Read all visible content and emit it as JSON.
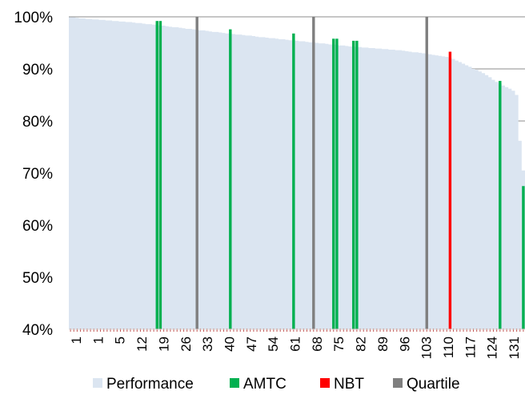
{
  "chart_data": {
    "type": "bar",
    "title": "",
    "xlabel": "",
    "ylabel": "",
    "ylim": [
      0.4,
      1.0
    ],
    "y_ticks": [
      {
        "value": 1.0,
        "label": "100%"
      },
      {
        "value": 0.9,
        "label": "90%"
      },
      {
        "value": 0.8,
        "label": "80%"
      },
      {
        "value": 0.7,
        "label": "70%"
      },
      {
        "value": 0.6,
        "label": "60%"
      },
      {
        "value": 0.5,
        "label": "50%"
      },
      {
        "value": 0.4,
        "label": "40%"
      }
    ],
    "x_tick_labels": [
      "1",
      "1",
      "5",
      "12",
      "19",
      "26",
      "33",
      "40",
      "47",
      "54",
      "61",
      "68",
      "75",
      "82",
      "89",
      "96",
      "103",
      "110",
      "117",
      "124",
      "131"
    ],
    "category_count": 137,
    "grid": "horizontal",
    "legend_position": "bottom",
    "colors": {
      "Performance": "#dbe5f1",
      "AMTC": "#00b050",
      "NBT": "#ff0000",
      "Quartile": "#7f7f7f",
      "baseline_tick": "#c0504d"
    },
    "series": [
      {
        "name": "Performance",
        "color": "#dbe5f1",
        "kind": "area",
        "values": [
          0.999,
          0.999,
          0.998,
          0.997,
          0.997,
          0.996,
          0.996,
          0.995,
          0.995,
          0.994,
          0.994,
          0.993,
          0.993,
          0.992,
          0.992,
          0.991,
          0.991,
          0.99,
          0.99,
          0.989,
          0.988,
          0.988,
          0.987,
          0.986,
          0.986,
          0.985,
          0.984,
          0.983,
          0.983,
          0.982,
          0.981,
          0.98,
          0.98,
          0.979,
          0.978,
          0.977,
          0.977,
          0.976,
          0.975,
          0.974,
          0.974,
          0.973,
          0.972,
          0.971,
          0.971,
          0.97,
          0.969,
          0.968,
          0.968,
          0.967,
          0.966,
          0.966,
          0.965,
          0.964,
          0.964,
          0.963,
          0.962,
          0.961,
          0.961,
          0.96,
          0.959,
          0.959,
          0.958,
          0.957,
          0.957,
          0.956,
          0.955,
          0.955,
          0.954,
          0.953,
          0.953,
          0.952,
          0.951,
          0.951,
          0.95,
          0.949,
          0.949,
          0.948,
          0.947,
          0.947,
          0.946,
          0.945,
          0.945,
          0.944,
          0.943,
          0.943,
          0.942,
          0.942,
          0.941,
          0.941,
          0.94,
          0.94,
          0.939,
          0.939,
          0.938,
          0.938,
          0.937,
          0.937,
          0.936,
          0.936,
          0.935,
          0.934,
          0.933,
          0.932,
          0.932,
          0.931,
          0.93,
          0.929,
          0.928,
          0.927,
          0.926,
          0.925,
          0.924,
          0.923,
          0.921,
          0.919,
          0.916,
          0.913,
          0.91,
          0.907,
          0.904,
          0.9,
          0.898,
          0.895,
          0.892,
          0.888,
          0.884,
          0.879,
          0.875,
          0.872,
          0.868,
          0.865,
          0.862,
          0.858,
          0.85,
          0.762,
          0.705
        ]
      },
      {
        "name": "AMTC",
        "color": "#00b050",
        "kind": "bar",
        "points": [
          {
            "x": 27,
            "value": 0.992
          },
          {
            "x": 28,
            "value": 0.992
          },
          {
            "x": 49,
            "value": 0.976
          },
          {
            "x": 68,
            "value": 0.968
          },
          {
            "x": 80,
            "value": 0.958
          },
          {
            "x": 81,
            "value": 0.958
          },
          {
            "x": 86,
            "value": 0.954
          },
          {
            "x": 87,
            "value": 0.954
          },
          {
            "x": 130,
            "value": 0.877
          },
          {
            "x": 137,
            "value": 0.675
          }
        ]
      },
      {
        "name": "NBT",
        "color": "#ff0000",
        "kind": "bar",
        "points": [
          {
            "x": 115,
            "value": 0.933
          }
        ]
      },
      {
        "name": "Quartile",
        "color": "#7f7f7f",
        "kind": "bar",
        "points": [
          {
            "x": 39,
            "value": 1.0
          },
          {
            "x": 74,
            "value": 1.0
          },
          {
            "x": 108,
            "value": 1.0
          }
        ]
      }
    ]
  }
}
